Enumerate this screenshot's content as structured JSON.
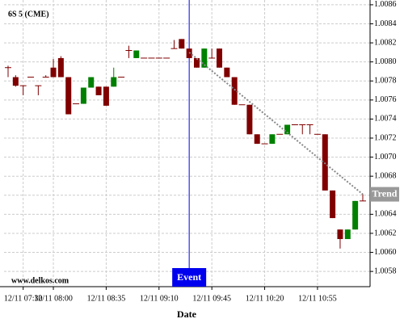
{
  "chart_data": {
    "type": "candlestick",
    "title": "6S 5 (CME)",
    "x_label": "Date",
    "watermark": "www.delkos.com",
    "categories": [
      null,
      null,
      "12/11 07:30",
      null,
      null,
      null,
      "12/11 08:00",
      null,
      null,
      null,
      null,
      null,
      null,
      "12/11 08:35",
      null,
      null,
      null,
      null,
      null,
      null,
      "12/11 09:10",
      null,
      null,
      null,
      null,
      null,
      null,
      "12/11 09:45",
      null,
      null,
      null,
      null,
      null,
      null,
      "12/11 10:20",
      null,
      null,
      null,
      null,
      null,
      null,
      "12/11 10:55",
      null,
      null,
      null,
      null,
      null,
      null
    ],
    "open": [
      1.00794,
      1.00784,
      1.00775,
      1.00784,
      1.00775,
      1.00784,
      1.00794,
      1.00804,
      1.00784,
      1.00756,
      1.00756,
      1.00773,
      1.00774,
      1.00774,
      1.00774,
      1.00784,
      1.00812,
      1.00804,
      1.00804,
      1.00804,
      1.00804,
      1.00804,
      1.00814,
      1.00824,
      1.00814,
      1.00804,
      1.00794,
      1.00804,
      1.00814,
      1.00794,
      1.00784,
      1.00755,
      1.00755,
      1.00724,
      1.00714,
      1.00714,
      1.00724,
      1.00724,
      1.00734,
      1.00734,
      1.00734,
      1.00724,
      1.00724,
      1.00665,
      1.00624,
      1.00614,
      1.00624,
      1.00654
    ],
    "high": [
      1.00796,
      1.00786,
      1.00775,
      1.00784,
      1.00775,
      1.00786,
      1.00803,
      1.00806,
      1.00784,
      1.00756,
      1.00773,
      1.00784,
      1.00774,
      1.00774,
      1.00794,
      1.00784,
      1.00817,
      1.00812,
      1.00804,
      1.00804,
      1.00804,
      1.00804,
      1.00823,
      1.00824,
      1.00814,
      1.00804,
      1.00814,
      1.00814,
      1.00814,
      1.00794,
      1.00784,
      1.00755,
      1.00755,
      1.00724,
      1.00714,
      1.00724,
      1.00724,
      1.00734,
      1.00734,
      1.00734,
      1.00734,
      1.00724,
      1.00724,
      1.00665,
      1.00624,
      1.00624,
      1.00654,
      1.00661
    ],
    "low": [
      1.00784,
      1.00774,
      1.00765,
      1.00784,
      1.00765,
      1.00784,
      1.00784,
      1.00784,
      1.00745,
      1.00756,
      1.00756,
      1.00773,
      1.00765,
      1.00754,
      1.00774,
      1.00784,
      1.00804,
      1.00804,
      1.00804,
      1.00804,
      1.00804,
      1.00804,
      1.00814,
      1.00814,
      1.00804,
      1.00794,
      1.00794,
      1.00804,
      1.00794,
      1.00784,
      1.00755,
      1.00755,
      1.00724,
      1.00714,
      1.00714,
      1.00714,
      1.00724,
      1.00724,
      1.00734,
      1.00724,
      1.00724,
      1.00724,
      1.00665,
      1.00636,
      1.00604,
      1.00614,
      1.00624,
      1.00654
    ],
    "close": [
      1.00794,
      1.00775,
      1.00775,
      1.00784,
      1.00775,
      1.00784,
      1.00784,
      1.00784,
      1.00745,
      1.00756,
      1.00773,
      1.00784,
      1.00765,
      1.00754,
      1.00784,
      1.00784,
      1.00812,
      1.00812,
      1.00804,
      1.00804,
      1.00804,
      1.00804,
      1.00814,
      1.00814,
      1.00804,
      1.00794,
      1.00814,
      1.00804,
      1.00794,
      1.00784,
      1.00755,
      1.00755,
      1.00724,
      1.00714,
      1.00714,
      1.00724,
      1.00724,
      1.00734,
      1.00734,
      1.00734,
      1.00734,
      1.00724,
      1.00665,
      1.00636,
      1.00614,
      1.00624,
      1.00654,
      1.00654
    ],
    "up_color": "#008000",
    "down_color": "#800000",
    "ylim": [
      1.00564,
      1.00865
    ],
    "yticks": [
      1.0058,
      {
        "value": 1.006,
        "label": "1.0060"
      },
      1.0062,
      1.0064,
      1.0066,
      1.0068,
      {
        "value": 1.007,
        "label": "1.0070"
      },
      1.0072,
      1.0074,
      1.0076,
      1.0078,
      {
        "value": 1.008,
        "label": "1.0080"
      },
      1.0082,
      1.0084,
      1.0086
    ],
    "grid": true,
    "event": {
      "label": "Event",
      "index": 24,
      "color": "#0000ee"
    },
    "trend": {
      "label": "Trend",
      "start": [
        24,
        1.0081
      ],
      "end": [
        47,
        1.00661
      ]
    }
  }
}
